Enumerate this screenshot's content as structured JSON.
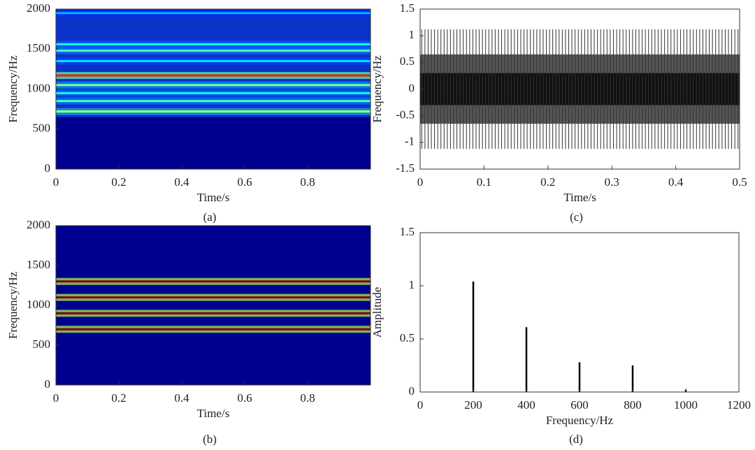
{
  "chart_data": [
    {
      "type": "heatmap",
      "caption": "(a)",
      "xlabel": "Time/s",
      "ylabel": "Frequency/Hz",
      "xlim": [
        0,
        1
      ],
      "xticks": [
        0,
        0.2,
        0.4,
        0.6,
        0.8
      ],
      "ylim": [
        0,
        2000
      ],
      "yticks": [
        0,
        500,
        1000,
        1500,
        2000
      ],
      "floor": 650,
      "values": [
        720,
        850,
        950,
        1050,
        1170,
        1350,
        1480,
        1560,
        1950
      ],
      "intensity": [
        0.55,
        0.45,
        0.4,
        0.5,
        0.85,
        0.35,
        0.45,
        0.4,
        0.3
      ]
    },
    {
      "type": "heatmap",
      "caption": "(b)",
      "xlabel": "Time/s",
      "ylabel": "Frequency/Hz",
      "xlim": [
        0,
        1
      ],
      "xticks": [
        0,
        0.2,
        0.4,
        0.6,
        0.8
      ],
      "ylim": [
        0,
        2000
      ],
      "yticks": [
        0,
        500,
        1000,
        1500,
        2000
      ],
      "values": [
        700,
        900,
        1100,
        1300
      ],
      "intensity": [
        1,
        1,
        1,
        1
      ]
    },
    {
      "type": "waveform",
      "caption": "(c)",
      "xlabel": "Time/s",
      "ylabel": "Frequency/Hz",
      "xlim": [
        0,
        0.5
      ],
      "xticks": [
        0,
        0.1,
        0.2,
        0.3,
        0.4,
        0.5
      ],
      "ylim": [
        -1.5,
        1.5
      ],
      "yticks": [
        -1.5,
        -1,
        -0.5,
        0,
        0.5,
        1,
        1.5
      ],
      "levels": [
        1.12,
        0.65,
        0.3
      ],
      "cycles": 100
    },
    {
      "type": "stem",
      "caption": "(d)",
      "xlabel": "Frequency/Hz",
      "ylabel": "Amplitude",
      "xlim": [
        0,
        1200
      ],
      "xticks": [
        0,
        200,
        400,
        600,
        800,
        1000,
        1200
      ],
      "ylim": [
        0,
        1.5
      ],
      "yticks": [
        0,
        0.5,
        1,
        1.5
      ],
      "x": [
        200,
        400,
        600,
        800,
        1000
      ],
      "values": [
        1.04,
        0.61,
        0.28,
        0.25,
        0.02
      ]
    }
  ]
}
